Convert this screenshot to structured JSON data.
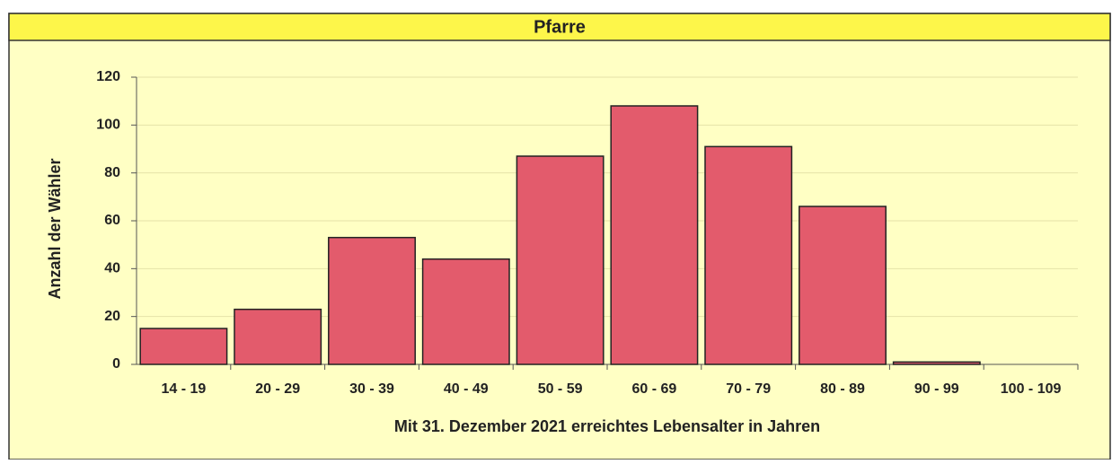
{
  "chart_data": {
    "type": "bar",
    "title": "Pfarre",
    "xlabel": "Mit 31. Dezember 2021 erreichtes Lebensalter in Jahren",
    "ylabel": "Anzahl der Wähler",
    "categories": [
      "14 - 19",
      "20 - 29",
      "30 - 39",
      "40 - 49",
      "50 - 59",
      "60 - 69",
      "70 - 79",
      "80 - 89",
      "90 - 99",
      "100 - 109"
    ],
    "values": [
      15,
      23,
      53,
      44,
      87,
      108,
      91,
      66,
      1,
      0
    ],
    "color": "#e35b6c",
    "ylim": [
      0,
      120
    ],
    "yticks": [
      0,
      20,
      40,
      60,
      80,
      100,
      120
    ],
    "grid": true
  }
}
